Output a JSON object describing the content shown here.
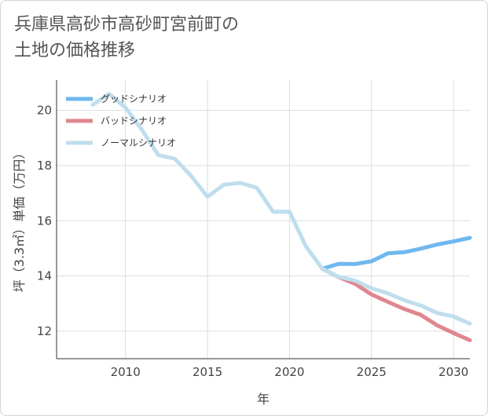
{
  "title_lines": [
    "兵庫県高砂市高砂町宮前町の",
    "土地の価格推移"
  ],
  "chart_data": {
    "type": "line",
    "xlabel": "年",
    "ylabel": "坪（3.3㎡）単価（万円）",
    "xlim": [
      2005.8,
      2031
    ],
    "ylim": [
      11,
      21.1
    ],
    "x_ticks": [
      2010,
      2015,
      2020,
      2025,
      2030
    ],
    "y_ticks": [
      12,
      14,
      16,
      18,
      20
    ],
    "grid": true,
    "legend_position": "top-left",
    "series": [
      {
        "name": "グッドシナリオ",
        "color": "#6fb8ee",
        "x": [
          2022,
          2023,
          2024,
          2025,
          2026,
          2027,
          2028,
          2029,
          2030,
          2031
        ],
        "y": [
          14.26,
          14.44,
          14.43,
          14.53,
          14.82,
          14.86,
          14.99,
          15.14,
          15.25,
          15.38
        ]
      },
      {
        "name": "バッドシナリオ",
        "color": "#e0868f",
        "x": [
          2022,
          2023,
          2024,
          2025,
          2026,
          2027,
          2028,
          2029,
          2030,
          2031
        ],
        "y": [
          14.26,
          13.96,
          13.71,
          13.33,
          13.06,
          12.8,
          12.59,
          12.21,
          11.93,
          11.67
        ]
      },
      {
        "name": "ノーマルシナリオ",
        "color": "#bfdeed",
        "x": [
          2008,
          2009,
          2010,
          2011,
          2012,
          2013,
          2014,
          2015,
          2016,
          2017,
          2018,
          2019,
          2020,
          2021,
          2022,
          2023,
          2024,
          2025,
          2026,
          2027,
          2028,
          2029,
          2030,
          2031
        ],
        "y": [
          20.2,
          20.6,
          20.1,
          19.3,
          18.38,
          18.25,
          17.63,
          16.87,
          17.31,
          17.37,
          17.2,
          16.33,
          16.33,
          15.07,
          14.26,
          13.97,
          13.83,
          13.55,
          13.37,
          13.12,
          12.93,
          12.66,
          12.53,
          12.27
        ]
      }
    ]
  }
}
